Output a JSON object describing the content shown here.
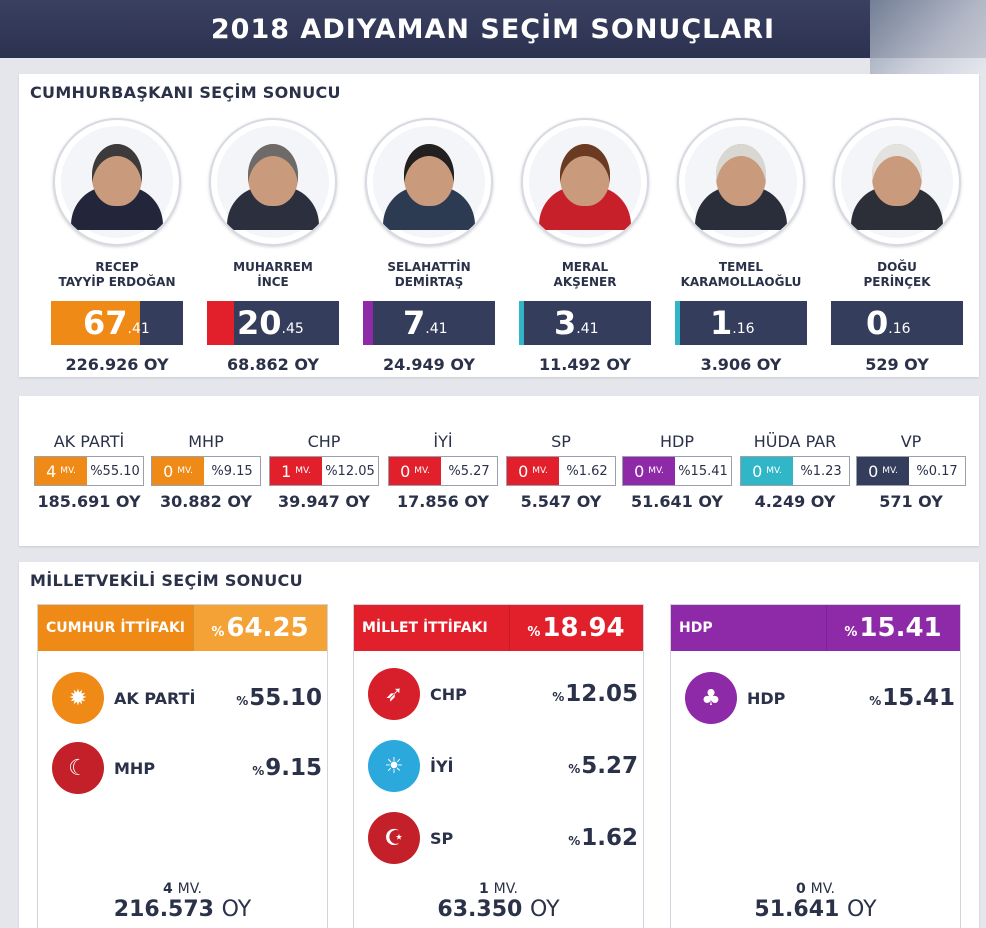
{
  "header": {
    "title": "2018 ADIYAMAN SEÇİM SONUÇLARI"
  },
  "colors": {
    "navy": "#343d5c",
    "orange": "#f08a16",
    "red": "#e2202c",
    "purple": "#8e2aa8",
    "cyan": "#31b6c8"
  },
  "presidential": {
    "title": "CUMHURBAŞKANI SEÇİM SONUCU",
    "candidates": [
      {
        "line1": "RECEP",
        "line2": "TAYYİP ERDOĞAN",
        "pct_int": "67",
        "pct_dec": ".41",
        "votes": "226.926 OY",
        "accent": "#f08a16",
        "fill": 0.6741,
        "suit": "#23263a",
        "hair": "#3c3a3a"
      },
      {
        "line1": "MUHARREM",
        "line2": "İNCE",
        "pct_int": "20",
        "pct_dec": ".45",
        "votes": "68.862 OY",
        "accent": "#e2202c",
        "fill": 0.2045,
        "suit": "#2b2f3e",
        "hair": "#6d6a69"
      },
      {
        "line1": "SELAHATTİN",
        "line2": "DEMİRTAŞ",
        "pct_int": "7",
        "pct_dec": ".41",
        "votes": "24.949 OY",
        "accent": "#8e2aa8",
        "fill": 0.0741,
        "suit": "#2c3a52",
        "hair": "#222020"
      },
      {
        "line1": "MERAL",
        "line2": "AKŞENER",
        "pct_int": "3",
        "pct_dec": ".41",
        "votes": "11.492 OY",
        "accent": "#31b6c8",
        "fill": 0.0341,
        "suit": "#c7202a",
        "hair": "#6a3a22"
      },
      {
        "line1": "TEMEL",
        "line2": "KARAMOLLAOĞLU",
        "pct_int": "1",
        "pct_dec": ".16",
        "votes": "3.906 OY",
        "accent": "#31b6c8",
        "fill": 0.0116,
        "suit": "#2a2d3a",
        "hair": "#d9d7d2"
      },
      {
        "line1": "DOĞU",
        "line2": "PERİNÇEK",
        "pct_int": "0",
        "pct_dec": ".16",
        "votes": "529 OY",
        "accent": "#343d5c",
        "fill": 0.0016,
        "suit": "#2c2e38",
        "hair": "#e4e2de"
      }
    ]
  },
  "parties": [
    {
      "name": "AK PARTİ",
      "mv": "4",
      "mv_label": "MV.",
      "share": "%55.10",
      "votes": "185.691 OY",
      "color": "#f08a16"
    },
    {
      "name": "MHP",
      "mv": "0",
      "mv_label": "MV.",
      "share": "%9.15",
      "votes": "30.882 OY",
      "color": "#f08a16"
    },
    {
      "name": "CHP",
      "mv": "1",
      "mv_label": "MV.",
      "share": "%12.05",
      "votes": "39.947 OY",
      "color": "#e2202c"
    },
    {
      "name": "İYİ",
      "mv": "0",
      "mv_label": "MV.",
      "share": "%5.27",
      "votes": "17.856 OY",
      "color": "#e2202c"
    },
    {
      "name": "SP",
      "mv": "0",
      "mv_label": "MV.",
      "share": "%1.62",
      "votes": "5.547 OY",
      "color": "#e2202c"
    },
    {
      "name": "HDP",
      "mv": "0",
      "mv_label": "MV.",
      "share": "%15.41",
      "votes": "51.641 OY",
      "color": "#8e2aa8"
    },
    {
      "name": "HÜDA PAR",
      "mv": "0",
      "mv_label": "MV.",
      "share": "%1.23",
      "votes": "4.249 OY",
      "color": "#31b6c8"
    },
    {
      "name": "VP",
      "mv": "0",
      "mv_label": "MV.",
      "share": "%0.17",
      "votes": "571 OY",
      "color": "#343d5c"
    }
  ],
  "parliament": {
    "title": "MİLLETVEKİLİ SEÇİM SONUCU",
    "alliances": [
      {
        "name": "CUMHUR İTTİFAKI",
        "pct_sign": "%",
        "pct": "64.25",
        "color": "#f08a16",
        "pct_color": "#f4a236",
        "members": [
          {
            "name": "AK PARTİ",
            "pct_sign": "%",
            "pct": "55.10",
            "logo_color": "#f08a16",
            "logo_icon": "bulb-icon",
            "glyph": "✹"
          },
          {
            "name": "MHP",
            "pct_sign": "%",
            "pct": "9.15",
            "logo_color": "#c4202a",
            "logo_icon": "crescents-icon",
            "glyph": "☾"
          }
        ],
        "mv": "4",
        "mv_label": "MV.",
        "votes": "216.573",
        "votes_label": "OY"
      },
      {
        "name": "MİLLET İTTİFAKI",
        "pct_sign": "%",
        "pct": "18.94",
        "color": "#e2202c",
        "pct_color": "#e2202c",
        "members": [
          {
            "name": "CHP",
            "pct_sign": "%",
            "pct": "12.05",
            "logo_color": "#d61f2a",
            "logo_icon": "six-arrows-icon",
            "glyph": "➶"
          },
          {
            "name": "İYİ",
            "pct_sign": "%",
            "pct": "5.27",
            "logo_color": "#2ba9dd",
            "logo_icon": "sun-icon",
            "glyph": "☀"
          },
          {
            "name": "SP",
            "pct_sign": "%",
            "pct": "1.62",
            "logo_color": "#c4202a",
            "logo_icon": "crescent-stars-icon",
            "glyph": "☪"
          }
        ],
        "mv": "1",
        "mv_label": "MV.",
        "votes": "63.350",
        "votes_label": "OY"
      },
      {
        "name": "HDP",
        "pct_sign": "%",
        "pct": "15.41",
        "color": "#8e2aa8",
        "pct_color": "#8e2aa8",
        "members": [
          {
            "name": "HDP",
            "pct_sign": "%",
            "pct": "15.41",
            "logo_color": "#8e2aa8",
            "logo_icon": "tree-icon",
            "glyph": "♣"
          }
        ],
        "mv": "0",
        "mv_label": "MV.",
        "votes": "51.641",
        "votes_label": "OY"
      }
    ]
  }
}
